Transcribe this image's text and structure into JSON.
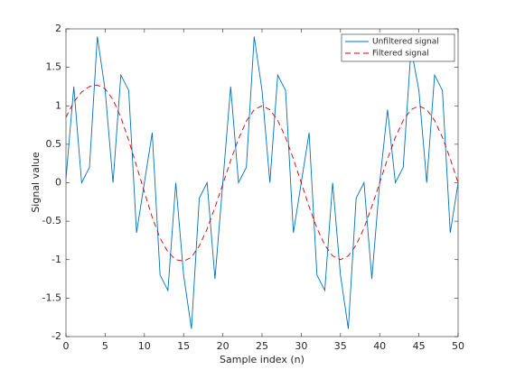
{
  "chart_data": {
    "type": "line",
    "xlabel": "Sample index (n)",
    "ylabel": "Signal value",
    "x": [
      0,
      1,
      2,
      3,
      4,
      5,
      6,
      7,
      8,
      9,
      10,
      11,
      12,
      13,
      14,
      15,
      16,
      17,
      18,
      19,
      20,
      21,
      22,
      23,
      24,
      25,
      26,
      27,
      28,
      29,
      30,
      31,
      32,
      33,
      34,
      35,
      36,
      37,
      38,
      39,
      40,
      41,
      42,
      43,
      44,
      45,
      46,
      47,
      48,
      49,
      50
    ],
    "series": [
      {
        "name": "Unfiltered signal",
        "color": "#0072bd",
        "dash": false,
        "values": [
          0.05,
          1.25,
          0.0,
          0.2,
          1.9,
          1.2,
          0.0,
          1.4,
          1.2,
          -0.65,
          0.0,
          0.65,
          -1.2,
          -1.4,
          0.0,
          -1.2,
          -1.9,
          -0.2,
          0.0,
          -1.25,
          0.0,
          1.25,
          0.0,
          0.2,
          1.9,
          1.2,
          0.0,
          1.4,
          1.2,
          -0.65,
          0.0,
          0.65,
          -1.2,
          -1.4,
          0.0,
          -1.2,
          -1.9,
          -0.2,
          0.0,
          -1.25,
          0.0,
          0.95,
          0.0,
          0.2,
          1.75,
          1.2,
          0.0,
          1.4,
          1.2,
          -0.65,
          0.0
        ]
      },
      {
        "name": "Filtered signal",
        "color": "#cc0000",
        "dash": true,
        "values": [
          0.85,
          1.05,
          1.18,
          1.25,
          1.27,
          1.22,
          1.08,
          0.85,
          0.55,
          0.22,
          -0.12,
          -0.45,
          -0.72,
          -0.9,
          -1.0,
          -1.02,
          -0.97,
          -0.82,
          -0.6,
          -0.32,
          -0.02,
          0.29,
          0.57,
          0.8,
          0.95,
          1.0,
          0.95,
          0.81,
          0.59,
          0.31,
          0.0,
          -0.31,
          -0.59,
          -0.81,
          -0.95,
          -1.0,
          -0.95,
          -0.81,
          -0.59,
          -0.31,
          0.0,
          0.31,
          0.59,
          0.81,
          0.95,
          1.0,
          0.95,
          0.81,
          0.59,
          0.31,
          0.0
        ]
      }
    ],
    "xlim": [
      0,
      50
    ],
    "xticks": [
      0,
      5,
      10,
      15,
      20,
      25,
      30,
      35,
      40,
      45,
      50
    ],
    "ylim": [
      -2,
      2
    ],
    "yticks": [
      -2,
      -1.5,
      -1,
      -0.5,
      0,
      0.5,
      1,
      1.5,
      2
    ],
    "grid": false,
    "legend": "top-right"
  }
}
